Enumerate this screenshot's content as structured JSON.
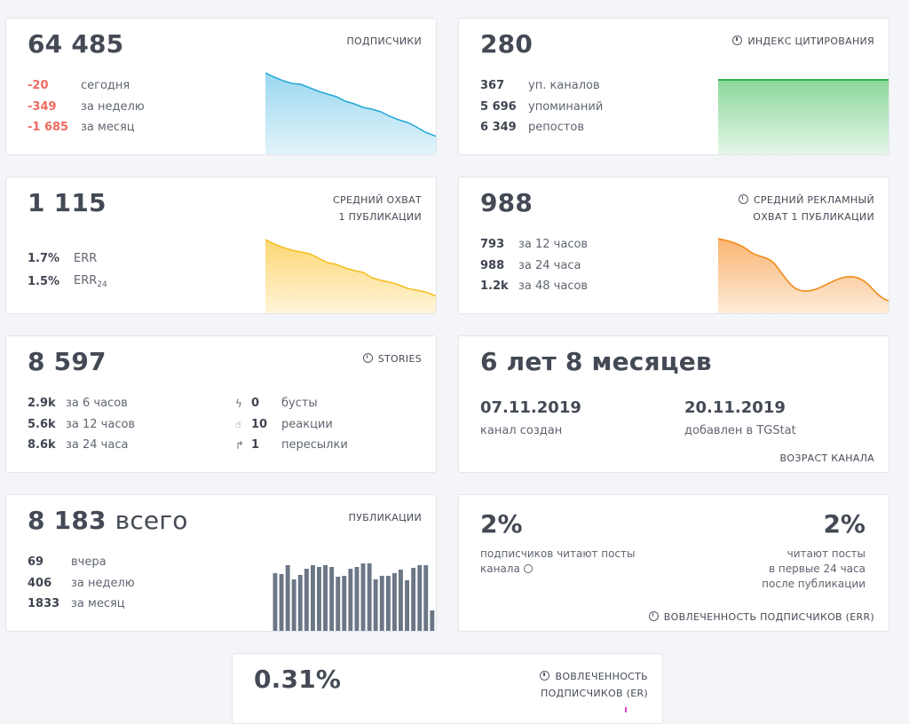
{
  "subscribers": {
    "value": "64 485",
    "label": "ПОДПИСЧИКИ",
    "rows": [
      {
        "v": "-20",
        "t": "сегодня"
      },
      {
        "v": "-349",
        "t": "за неделю"
      },
      {
        "v": "-1 685",
        "t": "за месяц"
      }
    ],
    "color": "#1fa8d6"
  },
  "citation": {
    "value": "280",
    "label": "ИНДЕКС ЦИТИРОВАНИЯ",
    "rows": [
      {
        "v": "367",
        "t": "уп. каналов"
      },
      {
        "v": "5 696",
        "t": "упоминаний"
      },
      {
        "v": "6 349",
        "t": "репостов"
      }
    ],
    "color": "#31b24e"
  },
  "reach": {
    "value": "1 115",
    "label_line1": "СРЕДНИЙ ОХВАТ",
    "label_line2": "1 ПУБЛИКАЦИИ",
    "err_value": "1.7%",
    "err_label": "ERR",
    "err24_value": "1.5%",
    "err24_label": "ERR",
    "err24_sub": "24",
    "color": "#f5be1e"
  },
  "ad_reach": {
    "value": "988",
    "label_line1": "СРЕДНИЙ РЕКЛАМНЫЙ",
    "label_line2": "ОХВАТ 1 ПУБЛИКАЦИИ",
    "rows": [
      {
        "v": "793",
        "t": "за 12 часов"
      },
      {
        "v": "988",
        "t": "за 24 часа"
      },
      {
        "v": "1.2k",
        "t": "за 48 часов"
      }
    ],
    "color": "#f28a18"
  },
  "stories": {
    "value": "8 597",
    "label": "STORIES",
    "rows": [
      {
        "v": "2.9k",
        "t": "за 6 часов"
      },
      {
        "v": "5.6k",
        "t": "за 12 часов"
      },
      {
        "v": "8.6k",
        "t": "за 24 часа"
      }
    ],
    "extra": [
      {
        "icon": "lightning-icon",
        "glyph": "ϟ",
        "v": "0",
        "t": "бусты"
      },
      {
        "icon": "thumbs-up-icon",
        "glyph": "👍",
        "v": "10",
        "t": "реакции"
      },
      {
        "icon": "share-arrow-icon",
        "glyph": "↱",
        "v": "1",
        "t": "пересылки"
      }
    ]
  },
  "age": {
    "value": "6 лет 8 месяцев",
    "created_date": "07.11.2019",
    "created_label": "канал создан",
    "added_date": "20.11.2019",
    "added_label": "добавлен в TGStat",
    "label": "ВОЗРАСТ КАНАЛА"
  },
  "publications": {
    "value": "8 183",
    "value_suffix": "всего",
    "label": "ПУБЛИКАЦИИ",
    "rows": [
      {
        "v": "69",
        "t": "вчера"
      },
      {
        "v": "406",
        "t": "за неделю"
      },
      {
        "v": "1833",
        "t": "за месяц"
      }
    ],
    "bar_color": "#6b7787",
    "bars": [
      66,
      65,
      75,
      59,
      64,
      71,
      75,
      73,
      75,
      73,
      62,
      63,
      71,
      73,
      77,
      77,
      59,
      63,
      63,
      66,
      70,
      58,
      72,
      75,
      75,
      24
    ]
  },
  "engagement": {
    "value_left": "2%",
    "note_left_1": "подписчиков читают посты",
    "note_left_2": "канала",
    "value_right": "2%",
    "note_right_1": "читают посты",
    "note_right_2": "в первые 24 часа",
    "note_right_3": "после публикации",
    "label": "ВОВЛЕЧЕННОСТЬ ПОДПИСЧИКОВ (ERR)"
  },
  "er": {
    "value": "0.31%",
    "label_line1": "ВОВЛЕЧЕННОСТЬ",
    "label_line2": "ПОДПИСЧИКОВ (ER)"
  }
}
